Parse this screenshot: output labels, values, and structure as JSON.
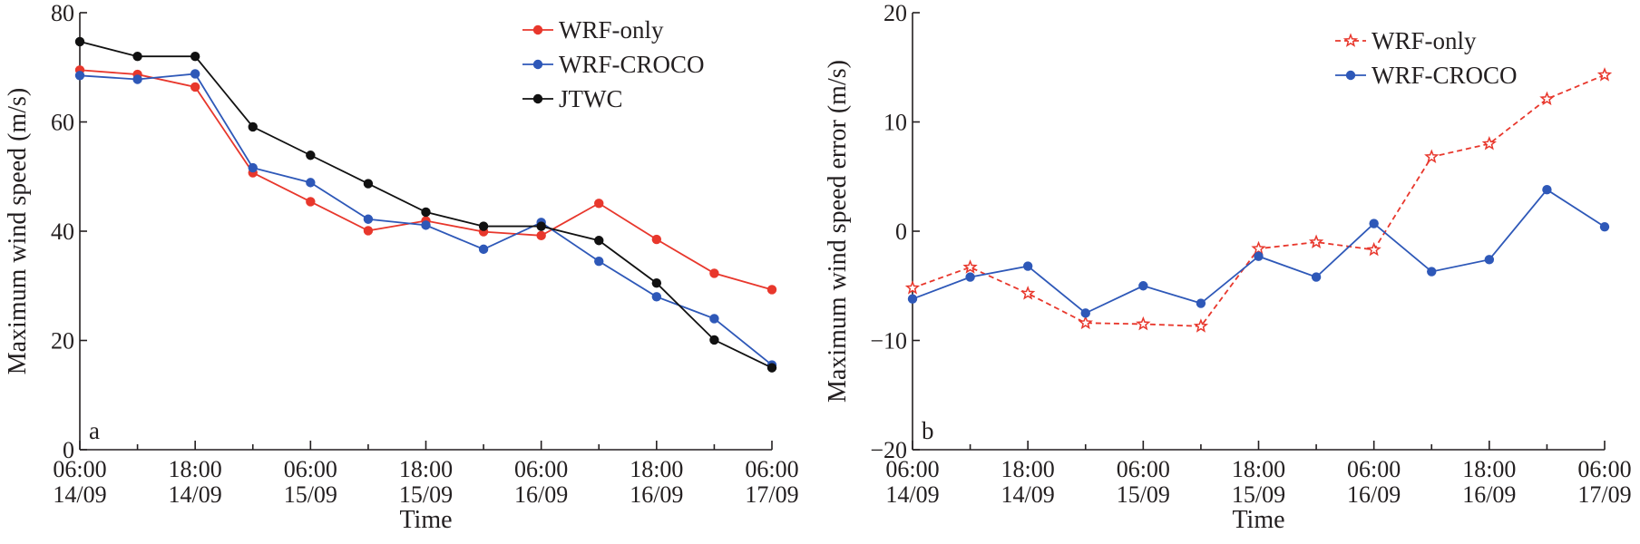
{
  "chart_data": [
    {
      "type": "line",
      "panel_label": "a",
      "xlabel": "Time",
      "ylabel": "Maximum wind speed (m/s)",
      "ylim": [
        0,
        80
      ],
      "yticks": [
        "0",
        "20",
        "40",
        "60",
        "80"
      ],
      "xticks": [
        {
          "time": "06:00",
          "date": "14/09"
        },
        {
          "time": "18:00",
          "date": "14/09"
        },
        {
          "time": "06:00",
          "date": "15/09"
        },
        {
          "time": "18:00",
          "date": "15/09"
        },
        {
          "time": "06:00",
          "date": "16/09"
        },
        {
          "time": "18:00",
          "date": "16/09"
        },
        {
          "time": "06:00",
          "date": "17/09"
        }
      ],
      "x": [
        "14/09 06:00",
        "14/09 12:00",
        "14/09 18:00",
        "15/09 00:00",
        "15/09 06:00",
        "15/09 12:00",
        "15/09 18:00",
        "16/09 00:00",
        "16/09 06:00",
        "16/09 12:00",
        "16/09 18:00",
        "17/09 00:00",
        "17/09 06:00"
      ],
      "legend_position": "top-right",
      "series": [
        {
          "name": "WRF-only",
          "color": "#e8372c",
          "marker": "circle",
          "dashed": false,
          "values": [
            69.5,
            68.7,
            66.4,
            50.7,
            45.4,
            40.1,
            41.9,
            39.9,
            39.2,
            45.1,
            38.5,
            32.3,
            29.3
          ]
        },
        {
          "name": "WRF-CROCO",
          "color": "#2e58b8",
          "marker": "circle",
          "dashed": false,
          "values": [
            68.5,
            67.8,
            68.8,
            51.6,
            48.9,
            42.2,
            41.1,
            36.7,
            41.6,
            34.5,
            28.0,
            24.0,
            15.5
          ]
        },
        {
          "name": "JTWC",
          "color": "#111111",
          "marker": "circle",
          "dashed": false,
          "values": [
            74.7,
            72.0,
            72.0,
            59.1,
            53.9,
            48.7,
            43.5,
            40.9,
            40.9,
            38.3,
            30.5,
            20.1,
            15.0
          ]
        }
      ]
    },
    {
      "type": "line",
      "panel_label": "b",
      "xlabel": "Time",
      "ylabel": "Maximum wind speed error (m/s)",
      "ylim": [
        -20,
        20
      ],
      "yticks": [
        "−20",
        "−10",
        "0",
        "10",
        "20"
      ],
      "xticks": [
        {
          "time": "06:00",
          "date": "14/09"
        },
        {
          "time": "18:00",
          "date": "14/09"
        },
        {
          "time": "06:00",
          "date": "15/09"
        },
        {
          "time": "18:00",
          "date": "15/09"
        },
        {
          "time": "06:00",
          "date": "16/09"
        },
        {
          "time": "18:00",
          "date": "16/09"
        },
        {
          "time": "06:00",
          "date": "17/09"
        }
      ],
      "x": [
        "14/09 06:00",
        "14/09 12:00",
        "14/09 18:00",
        "15/09 00:00",
        "15/09 06:00",
        "15/09 12:00",
        "15/09 18:00",
        "16/09 00:00",
        "16/09 06:00",
        "16/09 12:00",
        "16/09 18:00",
        "17/09 00:00",
        "17/09 06:00"
      ],
      "legend_position": "top-right",
      "series": [
        {
          "name": "WRF-only",
          "color": "#e8372c",
          "marker": "star",
          "dashed": true,
          "values": [
            -5.2,
            -3.3,
            -5.7,
            -8.4,
            -8.5,
            -8.7,
            -1.6,
            -1.0,
            -1.7,
            6.8,
            8.0,
            12.1,
            14.3
          ]
        },
        {
          "name": "WRF-CROCO",
          "color": "#2e58b8",
          "marker": "circle",
          "dashed": false,
          "values": [
            -6.2,
            -4.2,
            -3.2,
            -7.5,
            -5.0,
            -6.6,
            -2.3,
            -4.2,
            0.7,
            -3.7,
            -2.6,
            3.8,
            0.4
          ]
        }
      ]
    }
  ]
}
